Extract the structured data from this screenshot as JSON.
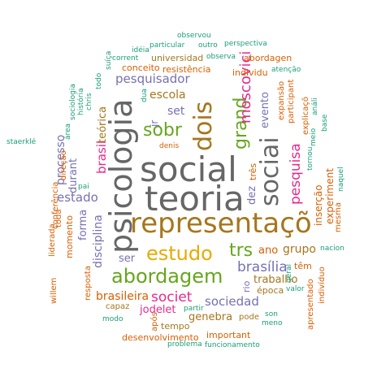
{
  "colors": {
    "grey": "#666666",
    "olive": "#A6761D",
    "green": "#66A61E",
    "pink": "#E7298A",
    "purple": "#7570B3",
    "orange": "#D95F02",
    "teal": "#1B9E77",
    "gold": "#E6AB02"
  },
  "words": [
    {
      "text": "social",
      "color": "grey"
    },
    {
      "text": "teoria",
      "color": "grey"
    },
    {
      "text": "psicologia",
      "color": "grey"
    },
    {
      "text": "representaçõ",
      "color": "olive"
    },
    {
      "text": "abordagem",
      "color": "green"
    },
    {
      "text": "estudo",
      "color": "gold"
    },
    {
      "text": "dois",
      "color": "olive"
    },
    {
      "text": "sociai",
      "color": "grey"
    },
    {
      "text": "grand",
      "color": "green"
    },
    {
      "text": "sobr",
      "color": "green"
    },
    {
      "text": "trs",
      "color": "green"
    },
    {
      "text": "moscovici",
      "color": "pink"
    },
    {
      "text": "pesquisa",
      "color": "pink"
    },
    {
      "text": "brasília",
      "color": "purple"
    },
    {
      "text": "societ",
      "color": "pink"
    },
    {
      "text": "sociedad",
      "color": "purple"
    },
    {
      "text": "pesquisador",
      "color": "purple"
    },
    {
      "text": "brasil",
      "color": "pink"
    },
    {
      "text": "estado",
      "color": "purple"
    },
    {
      "text": "processo",
      "color": "purple"
    },
    {
      "text": "disciplina",
      "color": "purple"
    },
    {
      "text": "grupo",
      "color": "olive"
    },
    {
      "text": "brasileira",
      "color": "orange"
    },
    {
      "text": "genebra",
      "color": "olive"
    },
    {
      "text": "jodelet",
      "color": "pink"
    },
    {
      "text": "escola",
      "color": "olive"
    },
    {
      "text": "set",
      "color": "purple"
    },
    {
      "text": "ser",
      "color": "purple"
    },
    {
      "text": "trabalho",
      "color": "olive"
    },
    {
      "text": "ano",
      "color": "orange"
    },
    {
      "text": "evento",
      "color": "purple"
    },
    {
      "text": "dez",
      "color": "purple"
    },
    {
      "text": "forma",
      "color": "purple"
    },
    {
      "text": "durant",
      "color": "purple"
    },
    {
      "text": "teórica",
      "color": "olive"
    },
    {
      "text": "universidad",
      "color": "olive"
    },
    {
      "text": "abordagen",
      "color": "orange"
    },
    {
      "text": "individu",
      "color": "orange"
    },
    {
      "text": "inserção",
      "color": "orange"
    },
    {
      "text": "experiment",
      "color": "orange"
    },
    {
      "text": "jr",
      "color": "purple"
    },
    {
      "text": "época",
      "color": "olive"
    },
    {
      "text": "tempo",
      "color": "olive"
    },
    {
      "text": "desenvolvimento",
      "color": "orange"
    },
    {
      "text": "important",
      "color": "orange"
    },
    {
      "text": "três",
      "color": "orange"
    },
    {
      "text": "momento",
      "color": "orange"
    },
    {
      "text": "conferência",
      "color": "orange"
    },
    {
      "text": "resistência",
      "color": "orange"
    },
    {
      "text": "conceito",
      "color": "orange"
    },
    {
      "text": "rio",
      "color": "purple"
    },
    {
      "text": "capaz",
      "color": "olive"
    },
    {
      "text": "pode",
      "color": "olive"
    },
    {
      "text": "têm",
      "color": "orange"
    },
    {
      "text": "apresentado",
      "color": "orange"
    },
    {
      "text": "indivíduo",
      "color": "orange"
    },
    {
      "text": "willem",
      "color": "orange"
    },
    {
      "text": "liderada",
      "color": "orange"
    },
    {
      "text": "toda",
      "color": "orange"
    },
    {
      "text": "direção",
      "color": "orange"
    },
    {
      "text": "resposta",
      "color": "orange"
    },
    {
      "text": "após",
      "color": "orange"
    },
    {
      "text": "mesma",
      "color": "orange"
    },
    {
      "text": "explicaçõ",
      "color": "orange"
    },
    {
      "text": "expansão",
      "color": "orange"
    },
    {
      "text": "participant",
      "color": "orange"
    },
    {
      "text": "observou",
      "color": "teal"
    },
    {
      "text": "particular",
      "color": "teal"
    },
    {
      "text": "outro",
      "color": "teal"
    },
    {
      "text": "perspectiva",
      "color": "teal"
    },
    {
      "text": "idéia",
      "color": "teal"
    },
    {
      "text": "corrent",
      "color": "teal"
    },
    {
      "text": "observa",
      "color": "teal"
    },
    {
      "text": "atenção",
      "color": "teal"
    },
    {
      "text": "suíça",
      "color": "teal"
    },
    {
      "text": "todo",
      "color": "teal"
    },
    {
      "text": "chris",
      "color": "teal"
    },
    {
      "text": "história",
      "color": "teal"
    },
    {
      "text": "sociologia",
      "color": "teal"
    },
    {
      "text": "área",
      "color": "teal"
    },
    {
      "text": "staerklé",
      "color": "teal"
    },
    {
      "text": "dua",
      "color": "teal"
    },
    {
      "text": "denis",
      "color": "orange"
    },
    {
      "text": "pai",
      "color": "teal"
    },
    {
      "text": "meio",
      "color": "teal"
    },
    {
      "text": "análi",
      "color": "teal"
    },
    {
      "text": "base",
      "color": "teal"
    },
    {
      "text": "tornou",
      "color": "teal"
    },
    {
      "text": "naquel",
      "color": "teal"
    },
    {
      "text": "nacion",
      "color": "teal"
    },
    {
      "text": "geral",
      "color": "teal"
    },
    {
      "text": "valor",
      "color": "teal"
    },
    {
      "text": "partir",
      "color": "teal"
    },
    {
      "text": "modo",
      "color": "teal"
    },
    {
      "text": "son",
      "color": "teal"
    },
    {
      "text": "meno",
      "color": "teal"
    },
    {
      "text": "problema",
      "color": "teal"
    },
    {
      "text": "funcionamento",
      "color": "teal"
    }
  ]
}
